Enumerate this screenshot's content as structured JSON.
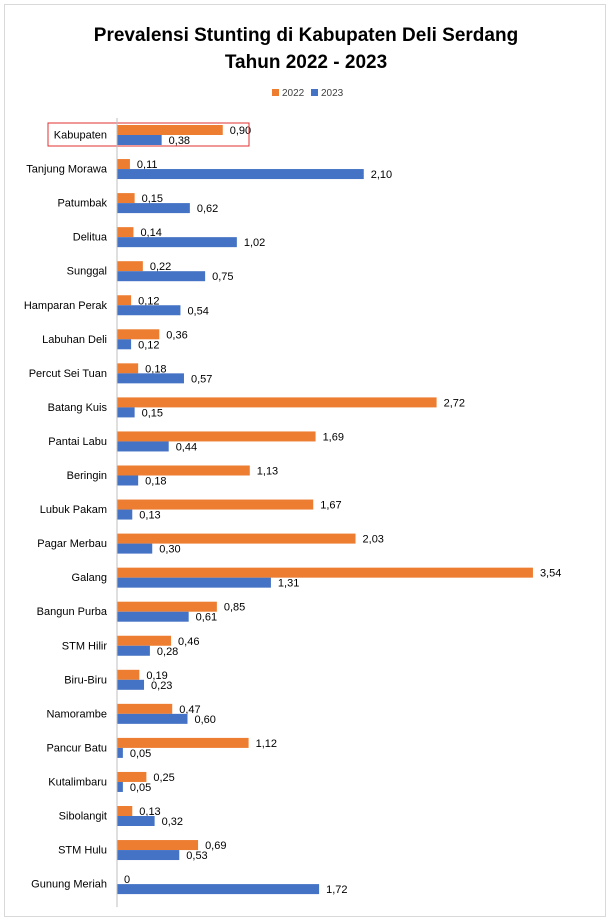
{
  "chart_data": {
    "type": "bar",
    "orientation": "horizontal",
    "title_lines": [
      "Prevalensi Stunting di Kabupaten Deli Serdang",
      "Tahun 2022 - 2023"
    ],
    "legend_position": "top-right",
    "grid": false,
    "xlim": [
      0,
      3.6
    ],
    "categories": [
      "Kabupaten",
      "Tanjung Morawa",
      "Patumbak",
      "Delitua",
      "Sunggal",
      "Hamparan Perak",
      "Labuhan Deli",
      "Percut Sei Tuan",
      "Batang Kuis",
      "Pantai Labu",
      "Beringin",
      "Lubuk Pakam",
      "Pagar Merbau",
      "Galang",
      "Bangun Purba",
      "STM Hilir",
      "Biru-Biru",
      "Namorambe",
      "Pancur Batu",
      "Kutalimbaru",
      "Sibolangit",
      "STM Hulu",
      "Gunung Meriah"
    ],
    "highlighted_category": "Kabupaten",
    "series": [
      {
        "name": "2022",
        "color": "#ed7d31",
        "values": [
          0.9,
          0.11,
          0.15,
          0.14,
          0.22,
          0.12,
          0.36,
          0.18,
          2.72,
          1.69,
          1.13,
          1.67,
          2.03,
          3.54,
          0.85,
          0.46,
          0.19,
          0.47,
          1.12,
          0.25,
          0.13,
          0.69,
          0
        ],
        "labels": [
          "0,90",
          "0,11",
          "0,15",
          "0,14",
          "0,22",
          "0,12",
          "0,36",
          "0,18",
          "2,72",
          "1,69",
          "1,13",
          "1,67",
          "2,03",
          "3,54",
          "0,85",
          "0,46",
          "0,19",
          "0,47",
          "1,12",
          "0,25",
          "0,13",
          "0,69",
          "0"
        ]
      },
      {
        "name": "2023",
        "color": "#4472c4",
        "values": [
          0.38,
          2.1,
          0.62,
          1.02,
          0.75,
          0.54,
          0.12,
          0.57,
          0.15,
          0.44,
          0.18,
          0.13,
          0.3,
          1.31,
          0.61,
          0.28,
          0.23,
          0.6,
          0.05,
          0.05,
          0.32,
          0.53,
          1.72
        ],
        "labels": [
          "0,38",
          "2,10",
          "0,62",
          "1,02",
          "0,75",
          "0,54",
          "0,12",
          "0,57",
          "0,15",
          "0,44",
          "0,18",
          "0,13",
          "0,30",
          "1,31",
          "0,61",
          "0,28",
          "0,23",
          "0,60",
          "0,05",
          "0,05",
          "0,32",
          "0,53",
          "1,72"
        ]
      }
    ]
  }
}
